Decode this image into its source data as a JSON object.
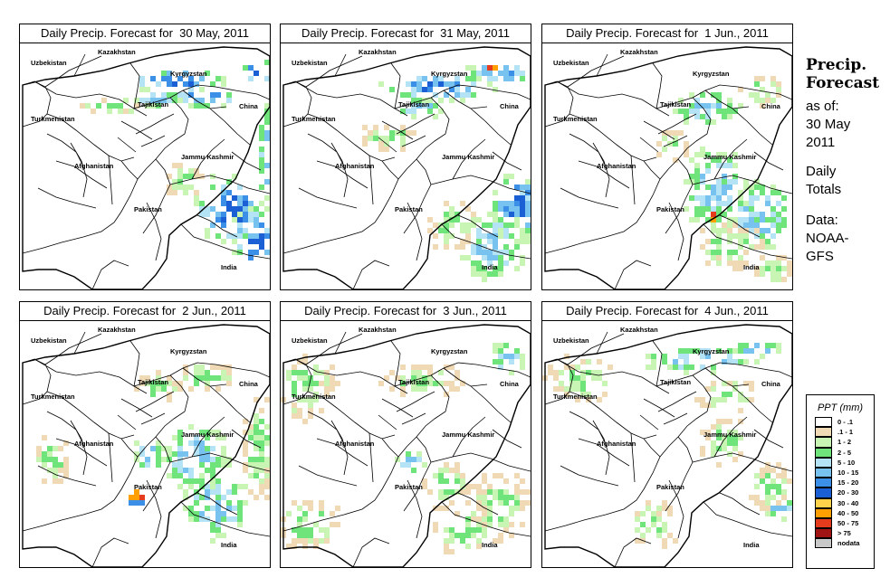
{
  "panels": [
    {
      "title": "Daily Precip. Forecast for  30 May, 2011",
      "pattern": "may30"
    },
    {
      "title": "Daily Precip. Forecast for  31 May, 2011",
      "pattern": "may31"
    },
    {
      "title": "Daily Precip. Forecast for  1 Jun., 2011",
      "pattern": "jun1"
    },
    {
      "title": "Daily Precip. Forecast for  2 Jun., 2011",
      "pattern": "jun2"
    },
    {
      "title": "Daily Precip. Forecast for  3 Jun., 2011",
      "pattern": "jun3"
    },
    {
      "title": "Daily Precip. Forecast for  4 Jun., 2011",
      "pattern": "jun4"
    }
  ],
  "map_labels": [
    "Kazakhstan",
    "Uzbekistan",
    "Kyrgyzstan",
    "Tajikistan",
    "Turkmenistan",
    "China",
    "Afghanistan",
    "Jammu Kashmir",
    "Pakistan",
    "India"
  ],
  "sidebar": {
    "heading1": "Precip.",
    "heading2": "Forecast",
    "as_of": "as of:",
    "date1": "30 May",
    "date2": "2011",
    "daily": "Daily",
    "totals": "Totals",
    "data_label": "Data:",
    "source1": "NOAA-",
    "source2": "GFS"
  },
  "legend": {
    "title": "PPT (mm)",
    "items": [
      {
        "label": "0 - .1",
        "color": "#ffffff"
      },
      {
        "label": ".1 - 1",
        "color": "#f0d9b5"
      },
      {
        "label": "1 - 2",
        "color": "#c8f5b4"
      },
      {
        "label": "2 - 5",
        "color": "#6ee47a"
      },
      {
        "label": "5 - 10",
        "color": "#b4e3f5"
      },
      {
        "label": "10 - 15",
        "color": "#78c2f0"
      },
      {
        "label": "15 - 20",
        "color": "#3c8fe6"
      },
      {
        "label": "20 - 30",
        "color": "#1a5fd4"
      },
      {
        "label": "30 - 40",
        "color": "#ffd24c"
      },
      {
        "label": "40 - 50",
        "color": "#ffa000"
      },
      {
        "label": "50 - 75",
        "color": "#e63c1e"
      },
      {
        "label": "> 75",
        "color": "#a01414"
      },
      {
        "label": "nodata",
        "color": "#c8c8c8"
      }
    ]
  }
}
